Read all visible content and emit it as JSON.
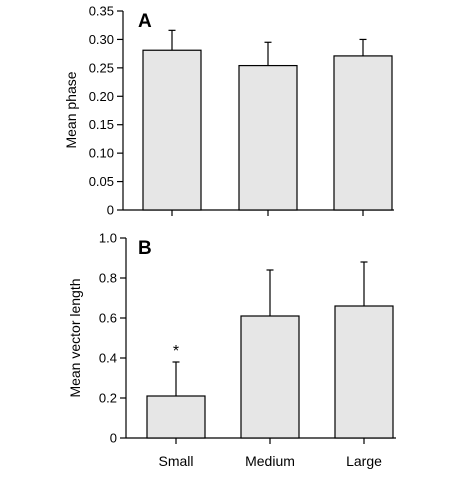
{
  "chart_data": [
    {
      "type": "bar",
      "panel_label": "A",
      "ylabel": "Mean phase",
      "ylim": [
        0,
        0.35
      ],
      "yticks": [
        0,
        0.05,
        0.1,
        0.15,
        0.2,
        0.25,
        0.3,
        0.35
      ],
      "ytick_labels": [
        "0",
        "0.05",
        "0.10",
        "0.15",
        "0.20",
        "0.25",
        "0.30",
        "0.35"
      ],
      "categories": [
        "Small",
        "Medium",
        "Large"
      ],
      "values": [
        0.281,
        0.254,
        0.271
      ],
      "error_upper": [
        0.316,
        0.295,
        0.3
      ],
      "annotations": [
        "",
        "",
        ""
      ],
      "bar_fill": "#e6e6e6",
      "show_category_labels": false
    },
    {
      "type": "bar",
      "panel_label": "B",
      "ylabel": "Mean vector length",
      "ylim": [
        0,
        1.0
      ],
      "yticks": [
        0,
        0.2,
        0.4,
        0.6,
        0.8,
        1.0
      ],
      "ytick_labels": [
        "0",
        "0.2",
        "0.4",
        "0.6",
        "0.8",
        "1.0"
      ],
      "categories": [
        "Small",
        "Medium",
        "Large"
      ],
      "values": [
        0.21,
        0.61,
        0.66
      ],
      "error_upper": [
        0.38,
        0.84,
        0.88
      ],
      "annotations": [
        "*",
        "",
        ""
      ],
      "bar_fill": "#e6e6e6",
      "show_category_labels": true
    }
  ]
}
